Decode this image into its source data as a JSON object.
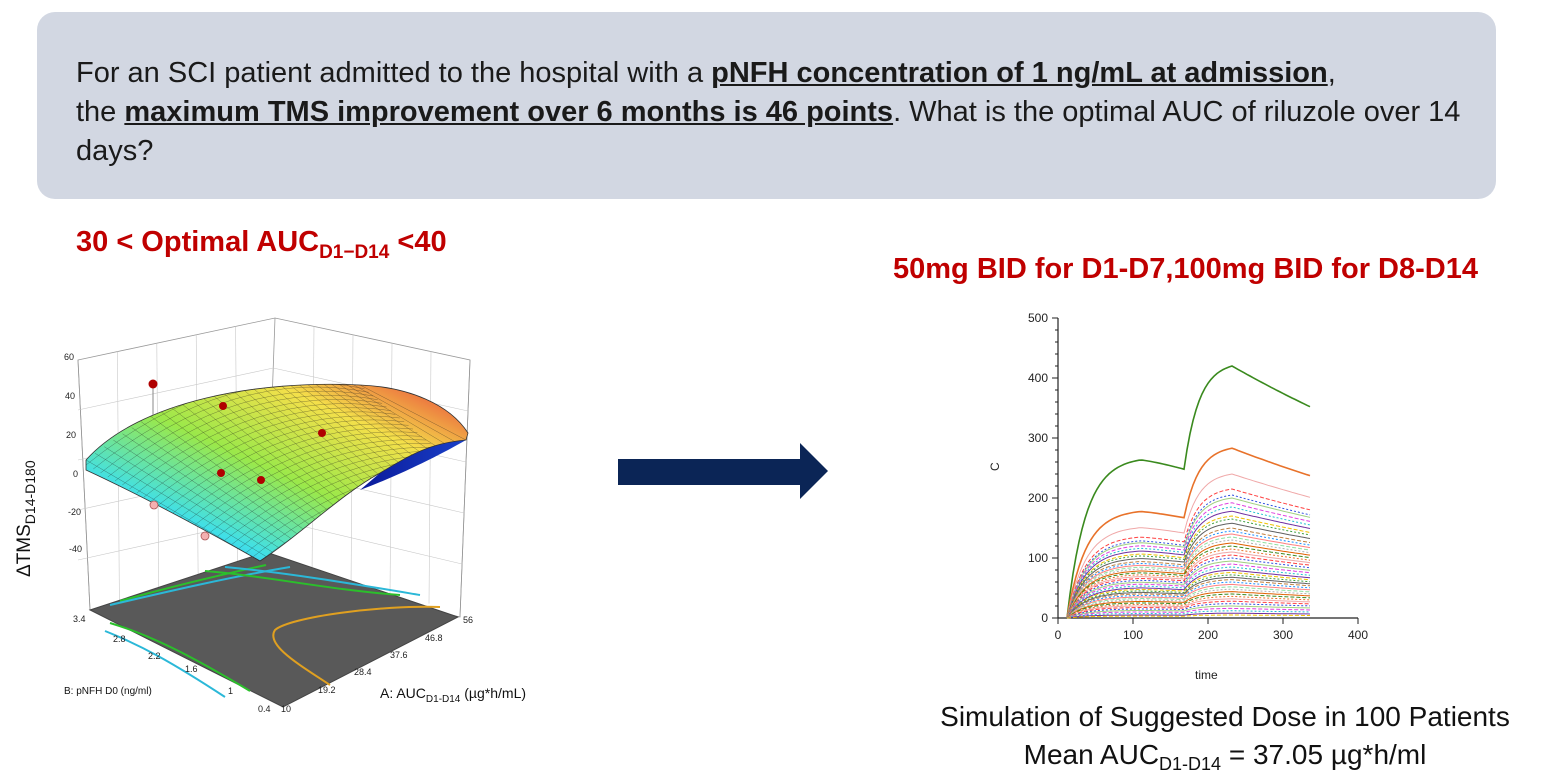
{
  "question": {
    "part1": "For an SCI patient admitted to the hospital with a ",
    "bold1": "pNFH concentration of 1 ng/mL at admission",
    "part2": ",",
    "part3": "the ",
    "bold2": "maximum TMS improvement over 6 months is 46 points",
    "part4": ". What is the optimal AUC of riluzole over 14 days?"
  },
  "left_title": {
    "prefix": "30 < Optimal AUC",
    "subscript": "D1−D14",
    "suffix": " <40"
  },
  "right_title": "50mg BID for D1-D7,100mg BID for D8-D14",
  "caption": {
    "line1": "Simulation of Suggested Dose in 100 Patients",
    "line2_prefix": "Mean AUC",
    "line2_sub": "D1-D14",
    "line2_suffix": " = 37.05 µg*h/ml"
  },
  "arrow_color": "#0b2556",
  "chart_data": [
    {
      "type": "surface",
      "zlabel": "ΔTMS",
      "zlabel_sub": "D14-D180",
      "xlabel": "A: AUC",
      "xlabel_sub": "D1-D14",
      "xlabel_unit": " (µg*h/mL)",
      "ylabel": "B: pNFH D0 (ng/ml)",
      "z_ticks": [
        "60",
        "40",
        "20",
        "0",
        "-20",
        "-40"
      ],
      "x_ticks": [
        "10",
        "19.2",
        "28.4",
        "37.6",
        "46.8",
        "56"
      ],
      "y_ticks": [
        "0.4",
        "1",
        "1.6",
        "2.2",
        "2.8",
        "3.4"
      ],
      "zlim": [
        -40,
        60
      ],
      "xlim": [
        10,
        56
      ],
      "ylim": [
        0.4,
        3.4
      ]
    },
    {
      "type": "line",
      "xlabel": "time",
      "ylabel": "C",
      "x_ticks": [
        "0",
        "100",
        "200",
        "300",
        "400"
      ],
      "y_ticks": [
        "0",
        "100",
        "200",
        "300",
        "400",
        "500"
      ],
      "xlim": [
        0,
        400
      ],
      "ylim": [
        0,
        500
      ],
      "series_peaks": [
        420,
        283,
        240,
        215,
        205,
        200,
        192,
        185,
        178,
        170,
        165,
        158,
        150,
        145,
        140,
        135,
        130,
        125,
        120,
        115,
        110,
        105,
        100,
        95,
        90,
        85,
        80,
        76,
        72,
        68,
        64,
        60,
        56,
        52,
        48,
        44,
        40,
        36,
        32,
        28,
        24,
        20,
        16,
        12,
        8,
        5
      ]
    }
  ]
}
